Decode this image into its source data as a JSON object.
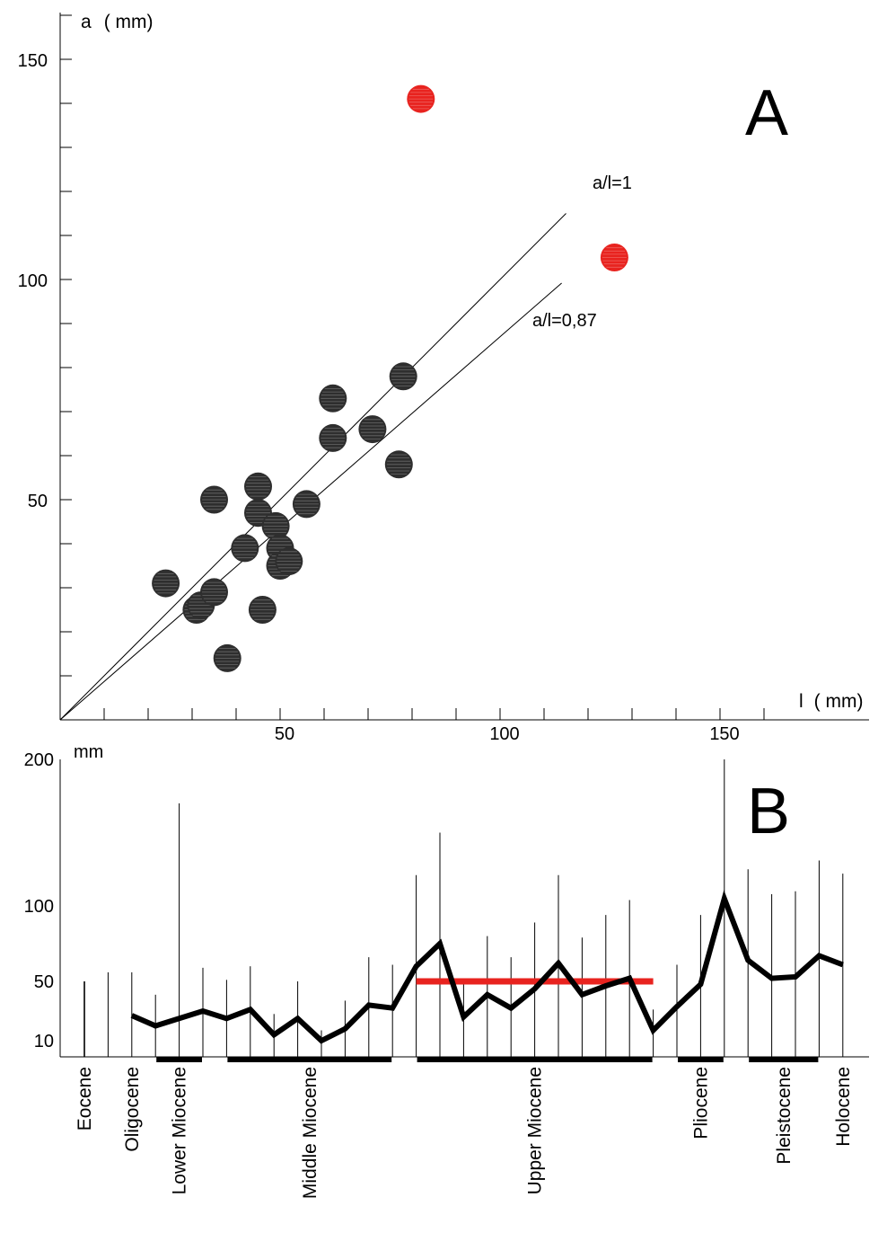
{
  "chart_data": [
    {
      "panel": "A",
      "panel_label": "A",
      "type": "scatter",
      "ylabel_var": "a",
      "ylabel_unit": "( mm)",
      "xlabel_var": "l",
      "xlabel_unit": "( mm)",
      "xlim": [
        0,
        165
      ],
      "ylim": [
        0,
        160
      ],
      "x_ticks": [
        50,
        100,
        150
      ],
      "y_ticks": [
        50,
        100,
        150
      ],
      "x_minor_step": 10,
      "y_minor_step": 10,
      "grid": false,
      "series": [
        {
          "color": "#2e2e2e",
          "points": [
            {
              "x": 24,
              "y": 31
            },
            {
              "x": 31,
              "y": 25
            },
            {
              "x": 32,
              "y": 26
            },
            {
              "x": 35,
              "y": 29
            },
            {
              "x": 35,
              "y": 50
            },
            {
              "x": 38,
              "y": 14
            },
            {
              "x": 42,
              "y": 39
            },
            {
              "x": 45,
              "y": 47
            },
            {
              "x": 45,
              "y": 53
            },
            {
              "x": 46,
              "y": 25
            },
            {
              "x": 49,
              "y": 44
            },
            {
              "x": 50,
              "y": 39
            },
            {
              "x": 50,
              "y": 35
            },
            {
              "x": 52,
              "y": 36
            },
            {
              "x": 56,
              "y": 49
            },
            {
              "x": 62,
              "y": 73
            },
            {
              "x": 62,
              "y": 64
            },
            {
              "x": 71,
              "y": 66
            },
            {
              "x": 77,
              "y": 58
            },
            {
              "x": 78,
              "y": 78
            }
          ]
        },
        {
          "color": "#e8231f",
          "points": [
            {
              "x": 82,
              "y": 141
            },
            {
              "x": 126,
              "y": 105
            }
          ]
        }
      ],
      "reference_lines": [
        {
          "label": "a/l=1",
          "slope": 1,
          "x_end": 115
        },
        {
          "label": "a/l=0,87",
          "slope": 0.87,
          "x_end": 114
        }
      ]
    },
    {
      "panel": "B",
      "panel_label": "B",
      "type": "line",
      "ylabel_unit": "mm",
      "y_ticks": [
        10,
        50,
        100,
        200
      ],
      "ylim": [
        0,
        200
      ],
      "line_color": "#000000",
      "mean_line": {
        "value": 50,
        "from_index": 14,
        "to_index": 24,
        "color": "#e8231f"
      },
      "series": [
        {
          "values": [
            null,
            null,
            27,
            20,
            25,
            30,
            25,
            31,
            14,
            25,
            10,
            18,
            34,
            32,
            60,
            75,
            26,
            41,
            32,
            45,
            62,
            41,
            47,
            52,
            17,
            33,
            48,
            105,
            64,
            52,
            53,
            67,
            61
          ]
        }
      ],
      "ranges": [
        {
          "min": 10,
          "max": 50
        },
        {
          "min": 10,
          "max": 56
        },
        {
          "min": 10,
          "max": 56
        },
        {
          "min": 10,
          "max": 41
        },
        {
          "min": 10,
          "max": 170
        },
        {
          "min": 10,
          "max": 59
        },
        {
          "min": 10,
          "max": 51
        },
        {
          "min": 10,
          "max": 60
        },
        {
          "min": 10,
          "max": 28
        },
        {
          "min": 10,
          "max": 50
        },
        {
          "min": 10,
          "max": 17
        },
        {
          "min": 10,
          "max": 37
        },
        {
          "min": 10,
          "max": 66
        },
        {
          "min": 10,
          "max": 61
        },
        {
          "min": 10,
          "max": 121
        },
        {
          "min": 10,
          "max": 150
        },
        {
          "min": 10,
          "max": 48
        },
        {
          "min": 10,
          "max": 80
        },
        {
          "min": 10,
          "max": 66
        },
        {
          "min": 10,
          "max": 89
        },
        {
          "min": 10,
          "max": 121
        },
        {
          "min": 10,
          "max": 79
        },
        {
          "min": 10,
          "max": 94
        },
        {
          "min": 10,
          "max": 104
        },
        {
          "min": 10,
          "max": 31
        },
        {
          "min": 10,
          "max": 61
        },
        {
          "min": 10,
          "max": 94
        },
        {
          "min": 10,
          "max": 200
        },
        {
          "min": 10,
          "max": 125
        },
        {
          "min": 10,
          "max": 108
        },
        {
          "min": 10,
          "max": 110
        },
        {
          "min": 10,
          "max": 131
        },
        {
          "min": 10,
          "max": 122
        }
      ],
      "epochs": [
        {
          "label": "Eocene",
          "from_index": 0,
          "to_index": 0
        },
        {
          "label": "Oligocene",
          "from_index": 2,
          "to_index": 2
        },
        {
          "label": "Lower Miocene",
          "from_index": 3,
          "to_index": 5
        },
        {
          "label": "Middle Miocene",
          "from_index": 6,
          "to_index": 13
        },
        {
          "label": "Upper Miocene",
          "from_index": 14,
          "to_index": 24
        },
        {
          "label": "Pliocene",
          "from_index": 25,
          "to_index": 27
        },
        {
          "label": "Pleistocene",
          "from_index": 28,
          "to_index": 31
        },
        {
          "label": "Holocene",
          "from_index": 32,
          "to_index": 32
        }
      ]
    }
  ]
}
